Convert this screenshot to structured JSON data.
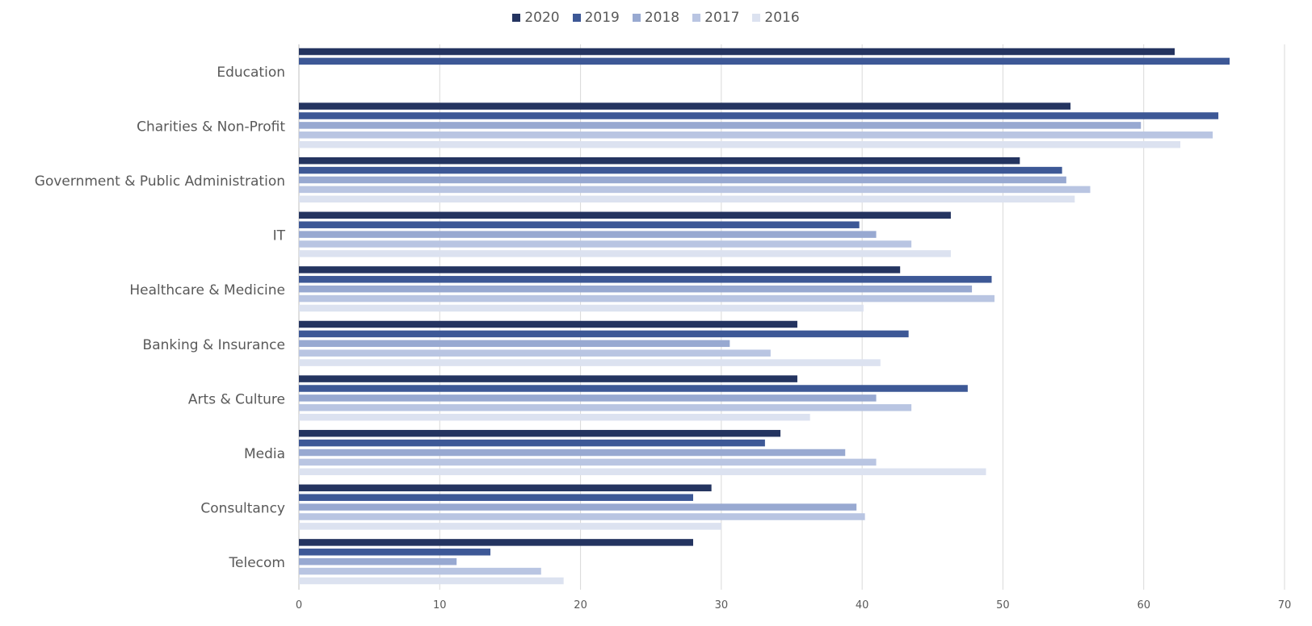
{
  "chart_data": {
    "type": "bar",
    "orientation": "horizontal",
    "categories": [
      "Education",
      "Charities & Non-Profit",
      "Government & Public Administration",
      "IT",
      "Healthcare & Medicine",
      "Banking & Insurance",
      "Arts & Culture",
      "Media",
      "Consultancy",
      "Telecom"
    ],
    "series": [
      {
        "name": "2020",
        "color": "#243460",
        "values": [
          62.2,
          54.8,
          51.2,
          46.3,
          42.7,
          35.4,
          35.4,
          34.2,
          29.3,
          28.0
        ]
      },
      {
        "name": "2019",
        "color": "#3d5896",
        "values": [
          66.1,
          65.3,
          54.2,
          39.8,
          49.2,
          43.3,
          47.5,
          33.1,
          28.0,
          13.6
        ]
      },
      {
        "name": "2018",
        "color": "#98a9d1",
        "values": [
          null,
          59.8,
          54.5,
          41.0,
          47.8,
          30.6,
          41.0,
          38.8,
          39.6,
          11.2
        ]
      },
      {
        "name": "2017",
        "color": "#b9c5e2",
        "values": [
          null,
          64.9,
          56.2,
          43.5,
          49.4,
          33.5,
          43.5,
          41.0,
          40.2,
          17.2
        ]
      },
      {
        "name": "2016",
        "color": "#dce2f0",
        "values": [
          null,
          62.6,
          55.1,
          46.3,
          40.1,
          41.3,
          36.3,
          48.8,
          30.0,
          18.8
        ]
      }
    ],
    "xlim": [
      0,
      70
    ],
    "x_ticks": [
      "0",
      "10",
      "20",
      "30",
      "40",
      "50",
      "60",
      "70"
    ],
    "grid": true,
    "legend_position": "top-center",
    "title": "",
    "xlabel": "",
    "ylabel": ""
  }
}
